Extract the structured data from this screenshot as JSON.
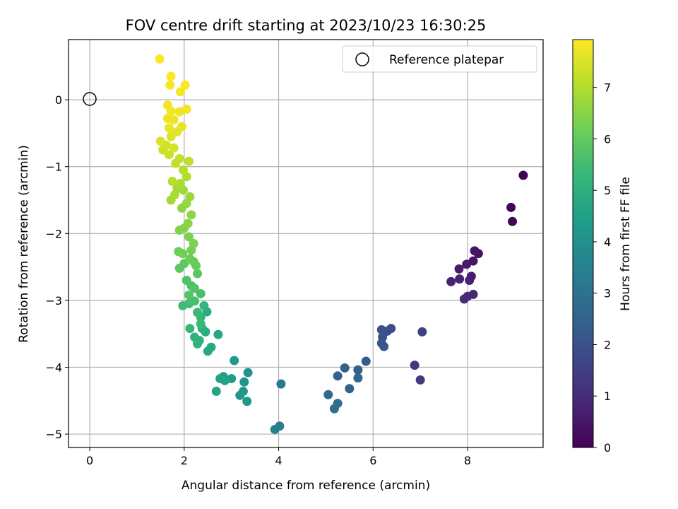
{
  "chart_data": {
    "type": "scatter",
    "title": "FOV centre drift starting at 2023/10/23 16:30:25",
    "xlabel": "Angular distance from reference (arcmin)",
    "ylabel": "Rotation from reference (arcmin)",
    "xlim": [
      -0.45,
      9.6
    ],
    "ylim": [
      -5.2,
      0.9
    ],
    "xticks": [
      0,
      2,
      4,
      6,
      8
    ],
    "yticks": [
      0,
      -1,
      -2,
      -3,
      -4,
      -5
    ],
    "grid": true,
    "legend": {
      "entries": [
        "Reference platepar"
      ],
      "position": "top-right"
    },
    "reference_point": {
      "x": 0,
      "y": 0,
      "marker": "open-circle"
    },
    "colorbar": {
      "label": "Hours from first FF file",
      "colormap": "viridis",
      "range": [
        0,
        7.93
      ],
      "ticks": [
        0,
        1,
        2,
        3,
        4,
        5,
        6,
        7
      ]
    },
    "points": [
      [
        9.18,
        -1.13,
        0.0
      ],
      [
        8.92,
        -1.61,
        0.05
      ],
      [
        8.95,
        -1.82,
        0.1
      ],
      [
        8.23,
        -2.3,
        0.4
      ],
      [
        8.15,
        -2.26,
        0.45
      ],
      [
        8.12,
        -2.41,
        0.5
      ],
      [
        7.98,
        -2.46,
        0.55
      ],
      [
        7.82,
        -2.53,
        0.6
      ],
      [
        8.08,
        -2.64,
        0.65
      ],
      [
        8.04,
        -2.7,
        0.7
      ],
      [
        7.83,
        -2.68,
        0.75
      ],
      [
        7.65,
        -2.72,
        0.8
      ],
      [
        8.12,
        -2.91,
        0.85
      ],
      [
        8.0,
        -2.94,
        0.9
      ],
      [
        7.93,
        -2.98,
        0.95
      ],
      [
        6.88,
        -3.97,
        1.3
      ],
      [
        7.0,
        -4.19,
        1.4
      ],
      [
        7.04,
        -3.47,
        1.5
      ],
      [
        6.38,
        -3.42,
        1.9
      ],
      [
        6.3,
        -3.46,
        1.95
      ],
      [
        6.18,
        -3.44,
        2.0
      ],
      [
        6.2,
        -3.55,
        2.05
      ],
      [
        6.18,
        -3.64,
        2.1
      ],
      [
        6.23,
        -3.69,
        2.15
      ],
      [
        5.85,
        -3.91,
        2.3
      ],
      [
        5.68,
        -4.04,
        2.35
      ],
      [
        5.4,
        -4.01,
        2.4
      ],
      [
        5.25,
        -4.13,
        2.45
      ],
      [
        5.5,
        -4.32,
        2.5
      ],
      [
        5.68,
        -4.16,
        2.55
      ],
      [
        5.05,
        -4.41,
        2.7
      ],
      [
        5.25,
        -4.54,
        2.8
      ],
      [
        5.18,
        -4.62,
        2.85
      ],
      [
        4.05,
        -4.25,
        3.2
      ],
      [
        4.02,
        -4.88,
        3.4
      ],
      [
        3.92,
        -4.93,
        3.45
      ],
      [
        3.35,
        -4.08,
        4.0
      ],
      [
        3.27,
        -4.22,
        4.1
      ],
      [
        3.25,
        -4.36,
        4.15
      ],
      [
        3.18,
        -4.42,
        4.2
      ],
      [
        3.33,
        -4.51,
        4.25
      ],
      [
        3.06,
        -3.9,
        4.3
      ],
      [
        3.0,
        -4.17,
        4.35
      ],
      [
        2.83,
        -4.14,
        4.45
      ],
      [
        2.76,
        -4.17,
        4.5
      ],
      [
        2.86,
        -4.2,
        4.55
      ],
      [
        2.68,
        -4.36,
        4.6
      ],
      [
        2.72,
        -3.51,
        4.7
      ],
      [
        2.57,
        -3.7,
        4.75
      ],
      [
        2.5,
        -3.76,
        4.8
      ],
      [
        2.45,
        -3.47,
        4.85
      ],
      [
        2.48,
        -3.17,
        4.9
      ],
      [
        2.38,
        -3.42,
        5.0
      ],
      [
        2.32,
        -3.6,
        5.05
      ],
      [
        2.22,
        -3.55,
        5.1
      ],
      [
        2.28,
        -3.65,
        5.15
      ],
      [
        2.35,
        -3.25,
        5.2
      ],
      [
        2.42,
        -3.08,
        5.25
      ],
      [
        2.12,
        -3.42,
        5.3
      ],
      [
        2.35,
        -3.35,
        5.35
      ],
      [
        2.28,
        -3.18,
        5.4
      ],
      [
        1.97,
        -3.08,
        5.45
      ],
      [
        2.1,
        -3.05,
        5.5
      ],
      [
        2.22,
        -3.01,
        5.55
      ],
      [
        2.35,
        -2.9,
        5.6
      ],
      [
        2.15,
        -2.78,
        5.65
      ],
      [
        2.05,
        -2.7,
        5.7
      ],
      [
        2.22,
        -2.82,
        5.75
      ],
      [
        2.1,
        -2.92,
        5.8
      ],
      [
        2.28,
        -2.6,
        5.85
      ],
      [
        1.9,
        -2.52,
        5.9
      ],
      [
        2.0,
        -2.45,
        5.95
      ],
      [
        2.2,
        -2.42,
        6.0
      ],
      [
        2.25,
        -2.48,
        6.05
      ],
      [
        2.12,
        -2.38,
        6.1
      ],
      [
        1.88,
        -2.27,
        6.15
      ],
      [
        1.97,
        -2.3,
        6.2
      ],
      [
        2.15,
        -2.25,
        6.25
      ],
      [
        2.2,
        -2.15,
        6.3
      ],
      [
        2.1,
        -2.05,
        6.35
      ],
      [
        1.9,
        -1.95,
        6.4
      ],
      [
        2.0,
        -1.92,
        6.45
      ],
      [
        2.08,
        -1.85,
        6.5
      ],
      [
        2.15,
        -1.72,
        6.55
      ],
      [
        1.95,
        -1.62,
        6.6
      ],
      [
        2.05,
        -1.55,
        6.65
      ],
      [
        2.12,
        -1.45,
        6.7
      ],
      [
        1.98,
        -1.35,
        6.75
      ],
      [
        1.85,
        -1.32,
        6.8
      ],
      [
        1.72,
        -1.5,
        6.85
      ],
      [
        1.8,
        -1.42,
        6.9
      ],
      [
        1.92,
        -1.25,
        6.95
      ],
      [
        2.05,
        -1.15,
        7.0
      ],
      [
        1.98,
        -1.05,
        7.05
      ],
      [
        1.75,
        -1.22,
        7.1
      ],
      [
        2.1,
        -0.92,
        7.15
      ],
      [
        1.82,
        -0.95,
        7.2
      ],
      [
        1.9,
        -0.88,
        7.25
      ],
      [
        1.68,
        -0.82,
        7.3
      ],
      [
        1.55,
        -0.75,
        7.35
      ],
      [
        1.62,
        -0.68,
        7.4
      ],
      [
        1.78,
        -0.72,
        7.45
      ],
      [
        1.5,
        -0.62,
        7.5
      ],
      [
        1.72,
        -0.55,
        7.55
      ],
      [
        1.85,
        -0.48,
        7.6
      ],
      [
        1.95,
        -0.4,
        7.65
      ],
      [
        1.68,
        -0.42,
        7.7
      ],
      [
        1.78,
        -0.3,
        7.72
      ],
      [
        1.65,
        -0.28,
        7.74
      ],
      [
        1.9,
        -0.18,
        7.76
      ],
      [
        2.05,
        -0.14,
        7.78
      ],
      [
        1.72,
        -0.17,
        7.8
      ],
      [
        1.65,
        -0.08,
        7.82
      ],
      [
        1.92,
        0.12,
        7.84
      ],
      [
        1.7,
        0.22,
        7.86
      ],
      [
        2.02,
        0.22,
        7.88
      ],
      [
        1.72,
        0.35,
        7.9
      ],
      [
        1.48,
        0.61,
        7.93
      ]
    ]
  }
}
